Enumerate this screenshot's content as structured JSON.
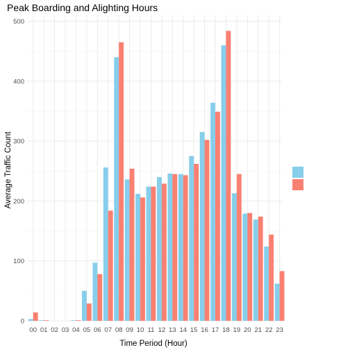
{
  "chart_data": {
    "type": "bar",
    "title": "Peak Boarding and Alighting Hours",
    "xlabel": "Time Period (Hour)",
    "ylabel": "Average Traffic Count",
    "ylim": [
      0,
      510
    ],
    "yticks": [
      0,
      100,
      200,
      300,
      400,
      500
    ],
    "grid": true,
    "legend_position": "right",
    "legend_title": "",
    "categories": [
      "00",
      "01",
      "02",
      "03",
      "04",
      "05",
      "06",
      "07",
      "08",
      "09",
      "10",
      "11",
      "12",
      "13",
      "14",
      "15",
      "16",
      "17",
      "18",
      "19",
      "20",
      "21",
      "22",
      "23"
    ],
    "series": [
      {
        "name": "",
        "color": "#87CEEB",
        "values": [
          3,
          1,
          0,
          0,
          1,
          50,
          97,
          256,
          440,
          236,
          212,
          224,
          240,
          246,
          245,
          275,
          315,
          364,
          460,
          213,
          179,
          169,
          124,
          62
        ]
      },
      {
        "name": "",
        "color": "#FA8072",
        "values": [
          14,
          1,
          0,
          0,
          1,
          29,
          78,
          184,
          465,
          254,
          206,
          224,
          229,
          245,
          243,
          262,
          302,
          349,
          484,
          245,
          180,
          174,
          144,
          83
        ]
      }
    ]
  }
}
